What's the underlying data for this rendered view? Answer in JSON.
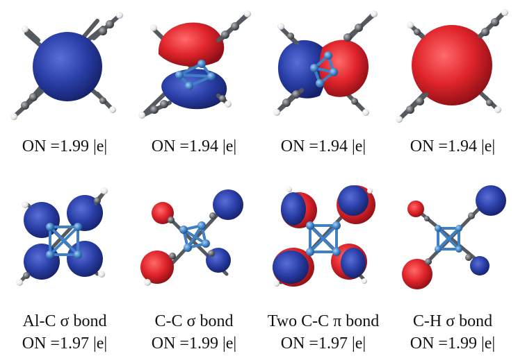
{
  "colors": {
    "blue_lobe": "#2a3fa8",
    "red_lobe": "#e0242b",
    "atom_al": "#3f80c4",
    "atom_c": "#606468",
    "atom_h": "#f0f0f0",
    "bond": "#555a60"
  },
  "panels_top": [
    {
      "name": "orbital-1",
      "occupation": "ON =1.99 |e|"
    },
    {
      "name": "orbital-2",
      "occupation": "ON =1.94 |e|"
    },
    {
      "name": "orbital-3",
      "occupation": "ON =1.94 |e|"
    },
    {
      "name": "orbital-4",
      "occupation": "ON =1.94 |e|"
    }
  ],
  "panels_bottom": [
    {
      "bond": "Al-C σ bond",
      "occupation": "ON =1.97 |e|"
    },
    {
      "bond": "C-C σ bond",
      "occupation": "ON =1.99 |e|"
    },
    {
      "bond": "Two C-C π bond",
      "occupation": "ON =1.97 |e|"
    },
    {
      "bond": "C-H σ bond",
      "occupation": "ON =1.99 |e|"
    }
  ]
}
